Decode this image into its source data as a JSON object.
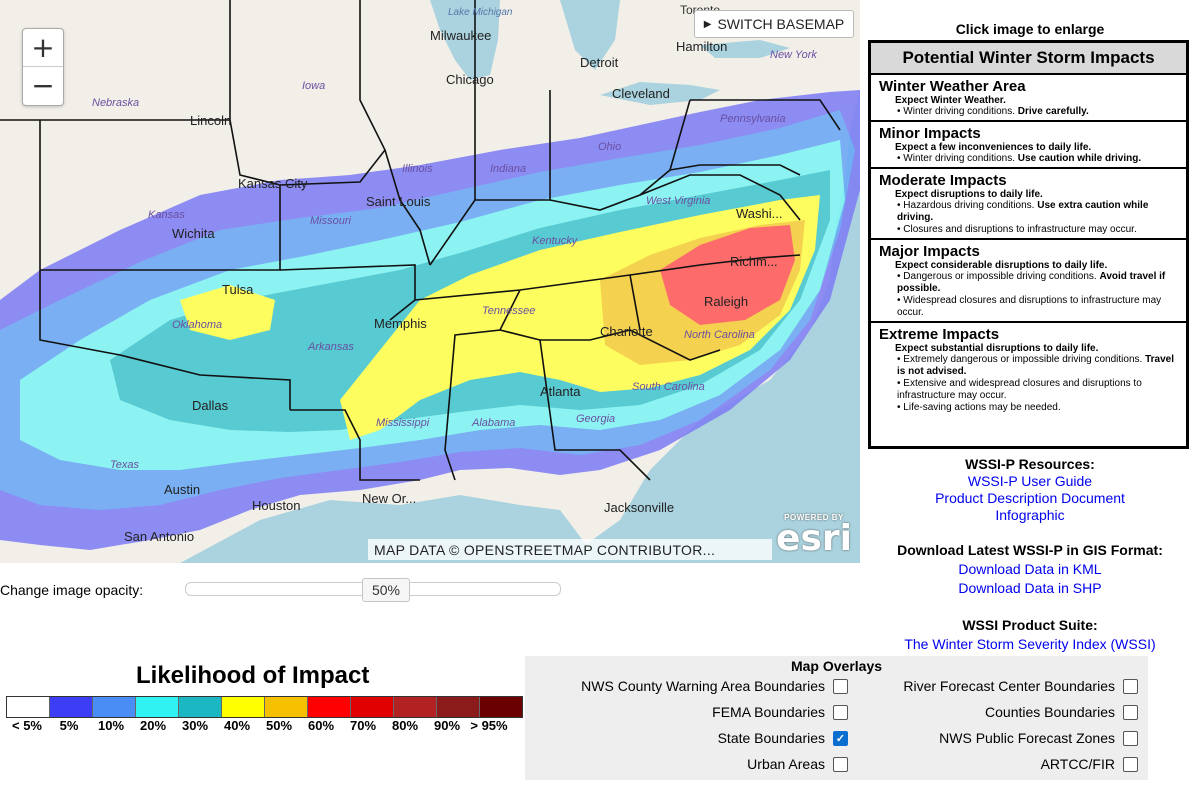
{
  "map": {
    "zoom_in": "+",
    "zoom_out": "−",
    "switch_basemap": "SWITCH BASEMAP",
    "attribution": "MAP DATA © OPENSTREETMAP CONTRIBUTOR...",
    "esri_powered": "POWERED BY",
    "esri_logo": "esri",
    "labels": {
      "lake_michigan": "Lake Michigan",
      "toronto": "Toronto",
      "milwaukee": "Milwaukee",
      "hamilton": "Hamilton",
      "new_york": "New York",
      "iowa": "Iowa",
      "detroit": "Detroit",
      "chicago": "Chicago",
      "nebraska": "Nebraska",
      "cleveland": "Cleveland",
      "lincoln": "Lincoln",
      "pennsylvania": "Pennsylvania",
      "ohio": "Ohio",
      "illinois": "Illinois",
      "indiana": "Indiana",
      "kansas_city": "Kansas City",
      "saint_louis": "Saint Louis",
      "missouri": "Missouri",
      "kansas": "Kansas",
      "west_virginia": "West Virginia",
      "wichita": "Wichita",
      "washington": "Washi...",
      "kentucky": "Kentucky",
      "richmond": "Richm...",
      "tulsa": "Tulsa",
      "oklahoma": "Oklahoma",
      "memphis": "Memphis",
      "tennessee": "Tennessee",
      "raleigh": "Raleigh",
      "arkansas": "Arkansas",
      "north_carolina": "North Carolina",
      "charlotte": "Charlotte",
      "south_carolina": "South Carolina",
      "atlanta": "Atlanta",
      "dallas": "Dallas",
      "mississippi": "Mississippi",
      "alabama": "Alabama",
      "georgia": "Georgia",
      "texas": "Texas",
      "austin": "Austin",
      "houston": "Houston",
      "new_orleans": "New Or...",
      "jacksonville": "Jacksonville",
      "san_antonio": "San Antonio"
    }
  },
  "opacity": {
    "label": "Change image opacity:",
    "value_label": "50%",
    "value": 0.5
  },
  "legend": {
    "title": "Likelihood of Impact",
    "swatches": [
      "#ffffff",
      "#3d3df5",
      "#4a8df5",
      "#31f2f2",
      "#1bb8c4",
      "#ffff00",
      "#f5c000",
      "#ff0000",
      "#e00000",
      "#b22222",
      "#8b1a1a",
      "#6b0000"
    ],
    "labels": [
      "< 5%",
      "5%",
      "10%",
      "20%",
      "30%",
      "40%",
      "50%",
      "60%",
      "70%",
      "80%",
      "90%",
      "> 95%"
    ]
  },
  "impacts": {
    "click_to_enlarge": "Click image to enlarge",
    "title": "Potential Winter Storm Impacts",
    "sections": [
      {
        "heading": "Winter Weather Area",
        "expect": "Expect Winter Weather.",
        "bullets": [
          {
            "text": "• Winter driving conditions. ",
            "bold": "Drive carefully."
          }
        ]
      },
      {
        "heading": "Minor Impacts",
        "expect": "Expect a few inconveniences to daily life.",
        "bullets": [
          {
            "text": "• Winter driving conditions. ",
            "bold": "Use caution while driving."
          }
        ]
      },
      {
        "heading": "Moderate Impacts",
        "expect": "Expect disruptions to daily life.",
        "bullets": [
          {
            "text": "• Hazardous driving conditions. ",
            "bold": "Use extra caution while driving."
          },
          {
            "text": "• Closures and disruptions to infrastructure may occur.",
            "bold": ""
          }
        ]
      },
      {
        "heading": "Major Impacts",
        "expect": "Expect considerable disruptions to daily life.",
        "bullets": [
          {
            "text": "• Dangerous or impossible driving conditions. ",
            "bold": "Avoid travel if possible."
          },
          {
            "text": "• Widespread closures and disruptions to infrastructure may occur.",
            "bold": ""
          }
        ]
      },
      {
        "heading": "Extreme Impacts",
        "expect": "Expect substantial disruptions to daily life.",
        "bullets": [
          {
            "text": "• Extremely dangerous or impossible driving conditions. ",
            "bold": "Travel is not advised."
          },
          {
            "text": "• Extensive and widespread closures and disruptions to infrastructure may occur.",
            "bold": ""
          },
          {
            "text": "• Life-saving actions may be needed.",
            "bold": ""
          }
        ]
      }
    ]
  },
  "resources": {
    "heading": "WSSI-P Resources:",
    "links": [
      "WSSI-P User Guide",
      "Product Description Document",
      "Infographic"
    ],
    "gis_heading": "Download Latest WSSI-P in GIS Format:",
    "gis_links": [
      "Download Data in KML",
      "Download Data in SHP"
    ],
    "suite_heading": "WSSI Product Suite:",
    "suite_link": "The Winter Storm Severity Index (WSSI)"
  },
  "overlays": {
    "title": "Map Overlays",
    "left": [
      {
        "label": "NWS County Warning Area Boundaries",
        "checked": false
      },
      {
        "label": "FEMA Boundaries",
        "checked": false
      },
      {
        "label": "State Boundaries",
        "checked": true
      },
      {
        "label": "Urban Areas",
        "checked": false
      }
    ],
    "right": [
      {
        "label": "River Forecast Center Boundaries",
        "checked": false
      },
      {
        "label": "Counties Boundaries",
        "checked": false
      },
      {
        "label": "NWS Public Forecast Zones",
        "checked": false
      },
      {
        "label": "ARTCC/FIR",
        "checked": false
      }
    ]
  }
}
